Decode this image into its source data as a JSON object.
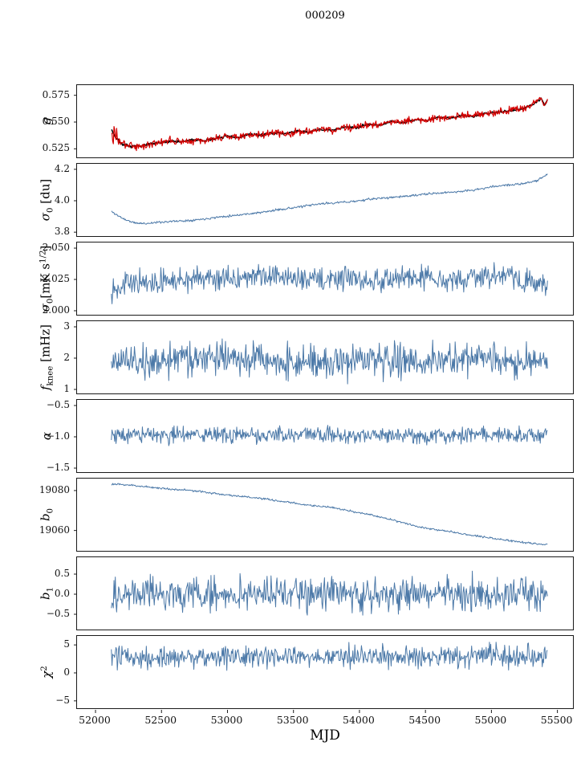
{
  "chart_data": {
    "type": "line",
    "title": "000209",
    "xlabel": "MJD",
    "xlim": [
      51860,
      55630
    ],
    "x_start": 52120,
    "x_end": 55425,
    "x_step": 5,
    "x_tick_values": [
      52000,
      52500,
      53000,
      53500,
      54000,
      54500,
      55000,
      55500
    ],
    "x_tick_labels": [
      "52000",
      "52500",
      "53000",
      "53500",
      "54000",
      "54500",
      "55000",
      "55500"
    ],
    "grid": false,
    "legend": "none",
    "colors": {
      "trace": "#4c79a8",
      "fit": "#000000",
      "raw": "#d40000",
      "axis": "#1a1a1a"
    },
    "panels": [
      {
        "ylabel": "g",
        "ylim": [
          0.5155,
          0.5845
        ],
        "ytick_values": [
          0.525,
          0.55,
          0.575
        ],
        "ytick_labels": [
          "0.525",
          "0.550",
          "0.575"
        ],
        "trend": [
          [
            52120,
            0.5435
          ],
          [
            52150,
            0.536
          ],
          [
            52200,
            0.5295
          ],
          [
            52260,
            0.527
          ],
          [
            52330,
            0.5275
          ],
          [
            52420,
            0.5295
          ],
          [
            52500,
            0.5305
          ],
          [
            52570,
            0.5325
          ],
          [
            52650,
            0.5315
          ],
          [
            52730,
            0.5335
          ],
          [
            52820,
            0.5325
          ],
          [
            52900,
            0.5345
          ],
          [
            53000,
            0.5365
          ],
          [
            53080,
            0.5355
          ],
          [
            53160,
            0.5385
          ],
          [
            53250,
            0.5375
          ],
          [
            53340,
            0.54
          ],
          [
            53430,
            0.539
          ],
          [
            53520,
            0.5415
          ],
          [
            53610,
            0.5405
          ],
          [
            53700,
            0.543
          ],
          [
            53790,
            0.542
          ],
          [
            53880,
            0.5455
          ],
          [
            53970,
            0.5445
          ],
          [
            54060,
            0.548
          ],
          [
            54150,
            0.547
          ],
          [
            54240,
            0.5505
          ],
          [
            54330,
            0.5495
          ],
          [
            54420,
            0.5525
          ],
          [
            54510,
            0.5515
          ],
          [
            54600,
            0.5545
          ],
          [
            54690,
            0.5535
          ],
          [
            54780,
            0.5565
          ],
          [
            54870,
            0.5555
          ],
          [
            54960,
            0.558
          ],
          [
            55050,
            0.5595
          ],
          [
            55140,
            0.5605
          ],
          [
            55230,
            0.5625
          ],
          [
            55300,
            0.5655
          ],
          [
            55350,
            0.5695
          ],
          [
            55380,
            0.5715
          ],
          [
            55400,
            0.566
          ],
          [
            55425,
            0.5705
          ]
        ],
        "series": [
          {
            "name": "g-fit",
            "color": "#000000",
            "width": 1.5,
            "noise": 0.0012,
            "seed": 7
          },
          {
            "name": "g-raw",
            "color": "#d40000",
            "width": 1.2,
            "noise": 0.0035,
            "noise_early": 0.015,
            "noise_early_until": 52165,
            "seed": 3
          }
        ]
      },
      {
        "ylabel": "σ_0 [du]",
        "ylim": [
          3.765,
          4.235
        ],
        "ytick_values": [
          3.8,
          4.0,
          4.2
        ],
        "ytick_labels": [
          "3.8",
          "4.0",
          "4.2"
        ],
        "trend": [
          [
            52120,
            3.932
          ],
          [
            52170,
            3.905
          ],
          [
            52230,
            3.878
          ],
          [
            52300,
            3.858
          ],
          [
            52380,
            3.855
          ],
          [
            52460,
            3.862
          ],
          [
            52560,
            3.868
          ],
          [
            52680,
            3.873
          ],
          [
            52800,
            3.882
          ],
          [
            52920,
            3.895
          ],
          [
            53040,
            3.906
          ],
          [
            53160,
            3.917
          ],
          [
            53280,
            3.928
          ],
          [
            53400,
            3.945
          ],
          [
            53520,
            3.958
          ],
          [
            53640,
            3.972
          ],
          [
            53720,
            3.982
          ],
          [
            53800,
            3.986
          ],
          [
            53900,
            3.992
          ],
          [
            54000,
            4.0
          ],
          [
            54100,
            4.012
          ],
          [
            54200,
            4.018
          ],
          [
            54300,
            4.026
          ],
          [
            54400,
            4.032
          ],
          [
            54500,
            4.042
          ],
          [
            54600,
            4.048
          ],
          [
            54700,
            4.055
          ],
          [
            54800,
            4.062
          ],
          [
            54900,
            4.072
          ],
          [
            55000,
            4.088
          ],
          [
            55080,
            4.098
          ],
          [
            55160,
            4.102
          ],
          [
            55240,
            4.108
          ],
          [
            55300,
            4.118
          ],
          [
            55340,
            4.128
          ],
          [
            55380,
            4.148
          ],
          [
            55425,
            4.168
          ]
        ],
        "series": [
          {
            "name": "sigma0-du",
            "color": "#4c79a8",
            "width": 1.0,
            "noise": 0.007,
            "seed": 11
          }
        ]
      },
      {
        "ylabel": "σ_0[mK s^{1/2}]",
        "ylim": [
          1.9955,
          2.0545
        ],
        "ytick_values": [
          2.0,
          2.025,
          2.05
        ],
        "ytick_labels": [
          "2.000",
          "2.025",
          "2.050"
        ],
        "trend": [
          [
            52120,
            2.018
          ],
          [
            52250,
            2.023
          ],
          [
            52400,
            2.021
          ],
          [
            52550,
            2.024
          ],
          [
            52700,
            2.025
          ],
          [
            52900,
            2.027
          ],
          [
            53100,
            2.025
          ],
          [
            53300,
            2.028
          ],
          [
            53500,
            2.026
          ],
          [
            53700,
            2.025
          ],
          [
            53900,
            2.027
          ],
          [
            54100,
            2.024
          ],
          [
            54300,
            2.026
          ],
          [
            54500,
            2.027
          ],
          [
            54700,
            2.025
          ],
          [
            54900,
            2.027
          ],
          [
            55100,
            2.028
          ],
          [
            55250,
            2.024
          ],
          [
            55350,
            2.021
          ],
          [
            55425,
            2.019
          ]
        ],
        "series": [
          {
            "name": "sigma0-mk",
            "color": "#4c79a8",
            "width": 1.0,
            "noise": 0.009,
            "seed": 13
          }
        ]
      },
      {
        "ylabel": "f_{knee} [mHz]",
        "ylim": [
          0.82,
          3.18
        ],
        "ytick_values": [
          1,
          2,
          3
        ],
        "ytick_labels": [
          "1",
          "2",
          "3"
        ],
        "trend": [
          [
            52120,
            1.95
          ],
          [
            52600,
            1.92
          ],
          [
            53100,
            1.95
          ],
          [
            53600,
            1.9
          ],
          [
            54100,
            1.93
          ],
          [
            54600,
            1.9
          ],
          [
            55100,
            1.92
          ],
          [
            55425,
            1.86
          ]
        ],
        "series": [
          {
            "name": "fknee",
            "color": "#4c79a8",
            "width": 1.0,
            "noise": 0.55,
            "seed": 17
          }
        ]
      },
      {
        "ylabel": "α",
        "ylim": [
          -1.59,
          -0.41
        ],
        "ytick_values": [
          -1.5,
          -1.0,
          -0.5
        ],
        "ytick_labels": [
          "−1.5",
          "−1.0",
          "−0.5"
        ],
        "trend": [
          [
            52120,
            -0.965
          ],
          [
            52800,
            -0.975
          ],
          [
            53500,
            -0.968
          ],
          [
            54200,
            -0.975
          ],
          [
            54900,
            -0.968
          ],
          [
            55425,
            -0.972
          ]
        ],
        "series": [
          {
            "name": "alpha",
            "color": "#4c79a8",
            "width": 1.0,
            "noise": 0.13,
            "seed": 19
          }
        ]
      },
      {
        "ylabel": "b_0",
        "ylim": [
          19049,
          19086
        ],
        "ytick_values": [
          19060,
          19080
        ],
        "ytick_labels": [
          "19060",
          "19080"
        ],
        "trend": [
          [
            52120,
            19083.2
          ],
          [
            52250,
            19082.8
          ],
          [
            52400,
            19081.8
          ],
          [
            52550,
            19080.8
          ],
          [
            52700,
            19080.2
          ],
          [
            52850,
            19079.0
          ],
          [
            53000,
            19077.8
          ],
          [
            53150,
            19076.8
          ],
          [
            53300,
            19075.6
          ],
          [
            53450,
            19074.2
          ],
          [
            53600,
            19072.8
          ],
          [
            53750,
            19071.8
          ],
          [
            53900,
            19070.2
          ],
          [
            54000,
            19068.8
          ],
          [
            54100,
            19067.6
          ],
          [
            54200,
            19066.2
          ],
          [
            54300,
            19064.4
          ],
          [
            54400,
            19062.8
          ],
          [
            54500,
            19061.2
          ],
          [
            54600,
            19060.2
          ],
          [
            54700,
            19059.4
          ],
          [
            54800,
            19058.2
          ],
          [
            54900,
            19057.2
          ],
          [
            55000,
            19056.2
          ],
          [
            55100,
            19055.2
          ],
          [
            55200,
            19054.4
          ],
          [
            55300,
            19053.6
          ],
          [
            55360,
            19053.2
          ],
          [
            55425,
            19053.0
          ]
        ],
        "series": [
          {
            "name": "b0",
            "color": "#4c79a8",
            "width": 1.0,
            "noise": 0.5,
            "seed": 23
          }
        ]
      },
      {
        "ylabel": "b_1",
        "ylim": [
          -0.92,
          0.92
        ],
        "ytick_values": [
          -0.5,
          0.0,
          0.5
        ],
        "ytick_labels": [
          "−0.5",
          "0.0",
          "0.5"
        ],
        "trend": [
          [
            52120,
            0.0
          ],
          [
            55425,
            0.0
          ]
        ],
        "series": [
          {
            "name": "b1",
            "color": "#4c79a8",
            "width": 1.0,
            "noise": 0.42,
            "seed": 29
          }
        ]
      },
      {
        "ylabel": "χ^2",
        "ylim": [
          -6.6,
          6.6
        ],
        "ytick_values": [
          -5,
          0,
          5
        ],
        "ytick_labels": [
          "−5",
          "0",
          "5"
        ],
        "trend": [
          [
            52120,
            2.7
          ],
          [
            52700,
            3.0
          ],
          [
            53300,
            2.7
          ],
          [
            53900,
            3.0
          ],
          [
            54500,
            2.7
          ],
          [
            55100,
            3.0
          ],
          [
            55425,
            2.8
          ]
        ],
        "series": [
          {
            "name": "chi2",
            "color": "#4c79a8",
            "width": 1.0,
            "noise": 2.0,
            "seed": 31
          }
        ]
      }
    ]
  }
}
